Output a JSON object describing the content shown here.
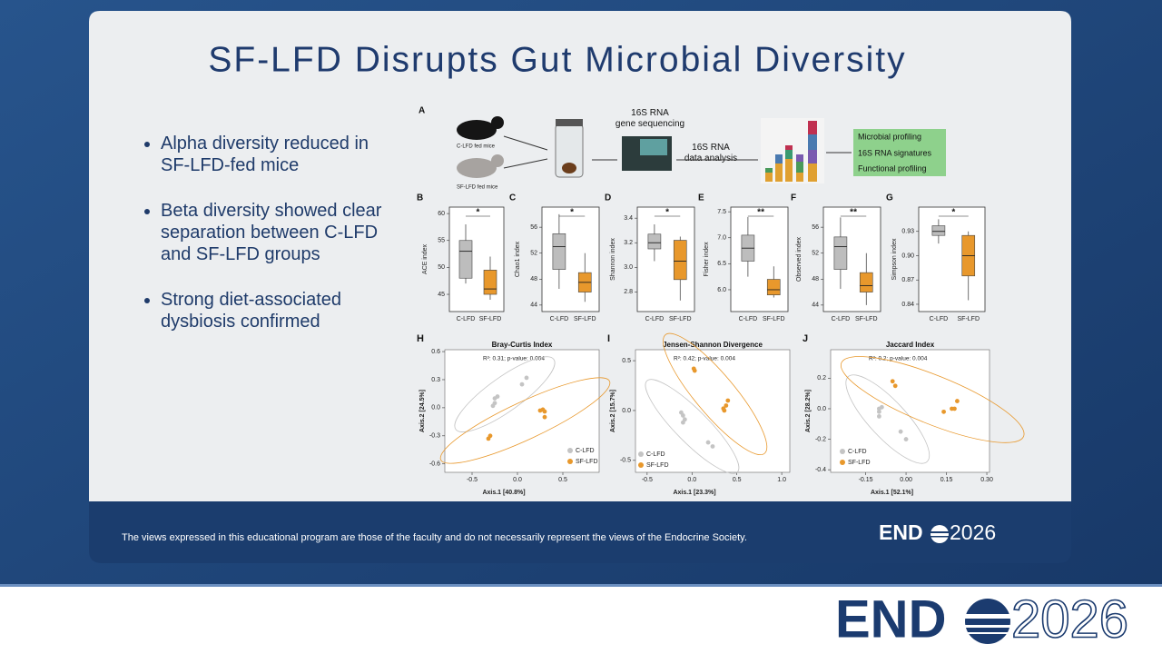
{
  "slide": {
    "title": "SF-LFD Disrupts Gut Microbial Diversity",
    "bullets": [
      "Alpha diversity reduced in SF-LFD-fed mice",
      "Beta diversity showed clear separation between C-LFD and SF-LFD groups",
      "Strong diet-associated dysbiosis confirmed"
    ],
    "disclaimer": "The views expressed in this educational program are those of the faculty and do not necessarily represent the views of the Endocrine Society.",
    "logo": {
      "left": "END",
      "right": "2026"
    }
  },
  "panel_a": {
    "label": "A",
    "mice": [
      "C-LFD fed mice",
      "SF-LFD fed mice"
    ],
    "sequencing": "16S RNA gene sequencing",
    "analysis": "16S RNA data analysis",
    "outputs": [
      "Microbial profiling",
      "16S RNA signatures",
      "Functional profiling"
    ]
  },
  "chart_data": [
    {
      "type": "box",
      "panel": "B",
      "y_label": "ACE index",
      "categories": [
        "C-LFD",
        "SF-LFD"
      ],
      "colors": [
        "#bdbdbd",
        "#e8982c"
      ],
      "boxes": [
        {
          "min": 47,
          "q1": 48,
          "median": 53,
          "q3": 55,
          "max": 58
        },
        {
          "min": 44,
          "q1": 45,
          "median": 46,
          "q3": 49.5,
          "max": 52
        }
      ],
      "significance": "*",
      "ylim": [
        41.8,
        61.2
      ],
      "yticks": [
        45,
        50,
        55,
        60
      ]
    },
    {
      "type": "box",
      "panel": "C",
      "y_label": "Chao1 index",
      "categories": [
        "C-LFD",
        "SF-LFD"
      ],
      "colors": [
        "#bdbdbd",
        "#e8982c"
      ],
      "boxes": [
        {
          "min": 46.5,
          "q1": 49.5,
          "median": 53,
          "q3": 55,
          "max": 58
        },
        {
          "min": 44.5,
          "q1": 46,
          "median": 47.5,
          "q3": 49,
          "max": 52
        }
      ],
      "significance": "*",
      "ylim": [
        43,
        59.1
      ],
      "yticks": [
        44,
        48,
        52,
        56
      ]
    },
    {
      "type": "box",
      "panel": "D",
      "y_label": "Shannon index",
      "categories": [
        "C-LFD",
        "SF-LFD"
      ],
      "colors": [
        "#bdbdbd",
        "#e8982c"
      ],
      "boxes": [
        {
          "min": 3.05,
          "q1": 3.15,
          "median": 3.2,
          "q3": 3.27,
          "max": 3.35
        },
        {
          "min": 2.73,
          "q1": 2.9,
          "median": 3.05,
          "q3": 3.22,
          "max": 3.25
        }
      ],
      "significance": "*",
      "ylim": [
        2.64,
        3.49
      ],
      "yticks": [
        {
          "value": 2.8,
          "label": "2.8"
        },
        {
          "value": 3,
          "label": "3.0"
        },
        {
          "value": 3.2,
          "label": "3.2"
        },
        {
          "value": 3.4,
          "label": "3.4"
        }
      ]
    },
    {
      "type": "box",
      "panel": "E",
      "y_label": "Fisher index",
      "categories": [
        "C-LFD",
        "SF-LFD"
      ],
      "colors": [
        "#bdbdbd",
        "#e8982c"
      ],
      "boxes": [
        {
          "min": 6.25,
          "q1": 6.55,
          "median": 6.8,
          "q3": 7.05,
          "max": 7.4
        },
        {
          "min": 5.85,
          "q1": 5.9,
          "median": 6,
          "q3": 6.2,
          "max": 6.45
        }
      ],
      "significance": "**",
      "ylim": [
        5.58,
        7.59
      ],
      "yticks": [
        {
          "value": 6,
          "label": "6.0"
        },
        6.5,
        {
          "value": 7,
          "label": "7.0"
        },
        7.5
      ]
    },
    {
      "type": "box",
      "panel": "F",
      "y_label": "Observed index",
      "categories": [
        "C-LFD",
        "SF-LFD"
      ],
      "colors": [
        "#bdbdbd",
        "#e8982c"
      ],
      "boxes": [
        {
          "min": 46.5,
          "q1": 49.5,
          "median": 53,
          "q3": 54.5,
          "max": 57.5
        },
        {
          "min": 44,
          "q1": 46,
          "median": 47,
          "q3": 49,
          "max": 52
        }
      ],
      "significance": "**",
      "ylim": [
        43,
        59.1
      ],
      "yticks": [
        44,
        48,
        52,
        56
      ]
    },
    {
      "type": "box",
      "panel": "G",
      "y_label": "Simpson index",
      "categories": [
        "C-LFD",
        "SF-LFD"
      ],
      "colors": [
        "#bdbdbd",
        "#e8982c"
      ],
      "boxes": [
        {
          "min": 0.915,
          "q1": 0.925,
          "median": 0.93,
          "q3": 0.937,
          "max": 0.945
        },
        {
          "min": 0.845,
          "q1": 0.875,
          "median": 0.9,
          "q3": 0.925,
          "max": 0.93
        }
      ],
      "significance": "*",
      "ylim": [
        0.831,
        0.96
      ],
      "yticks": [
        0.84,
        0.87,
        {
          "value": 0.9,
          "label": "0.90"
        },
        0.93
      ]
    },
    {
      "type": "scatter",
      "panel": "H",
      "title": "Bray-Curtis Index",
      "annotation": "R²: 0.31; p-value: 0.004",
      "x_label": "Axis.1  [40.8%]",
      "y_label": "Axis.2  [24.5%]",
      "xlim": [
        -0.8,
        0.9
      ],
      "ylim": [
        -0.69,
        0.62
      ],
      "xticks": [
        -0.5,
        {
          "value": 0,
          "label": "0.0"
        },
        0.5
      ],
      "yticks": [
        -0.6,
        -0.3,
        {
          "value": 0,
          "label": "0.0"
        },
        0.3,
        0.6
      ],
      "series": [
        {
          "name": "C-LFD",
          "color": "#c4c4c4",
          "x": [
            -0.27,
            -0.25,
            -0.22,
            -0.25,
            0.05,
            0.1
          ],
          "y": [
            0.02,
            0.05,
            0.12,
            0.1,
            0.25,
            0.32
          ]
        },
        {
          "name": "SF-LFD",
          "color": "#e8982c",
          "x": [
            -0.3,
            -0.32,
            0.25,
            0.3,
            0.3,
            0.28
          ],
          "y": [
            -0.3,
            -0.33,
            -0.03,
            -0.04,
            -0.1,
            -0.02
          ]
        }
      ]
    },
    {
      "type": "scatter",
      "panel": "I",
      "title": "Jensen-Shannon Divergence",
      "annotation": "R²: 0.42; p-value: 0.004",
      "x_label": "Axis.1  [23.3%]",
      "y_label": "Axis.2  [15.7%]",
      "xlim": [
        -0.63,
        1.09
      ],
      "ylim": [
        -0.62,
        0.61
      ],
      "xticks": [
        -0.5,
        {
          "value": 0,
          "label": "0.0"
        },
        0.5,
        {
          "value": 1,
          "label": "1.0"
        }
      ],
      "yticks": [
        -0.5,
        {
          "value": 0,
          "label": "0.0"
        },
        0.5
      ],
      "series": [
        {
          "name": "C-LFD",
          "color": "#c4c4c4",
          "x": [
            -0.12,
            -0.1,
            -0.1,
            -0.08,
            0.18,
            0.23
          ],
          "y": [
            -0.02,
            -0.05,
            -0.12,
            -0.09,
            -0.32,
            -0.36
          ]
        },
        {
          "name": "SF-LFD",
          "color": "#e8982c",
          "x": [
            0.02,
            0.03,
            0.35,
            0.38,
            0.4,
            0.36
          ],
          "y": [
            0.42,
            0.4,
            0.02,
            0.05,
            0.1,
            0.0
          ]
        }
      ]
    },
    {
      "type": "scatter",
      "panel": "J",
      "title": "Jaccard Index",
      "annotation": "R²: 0.2; p-value: 0.004",
      "x_label": "Axis.1  [52.1%]",
      "y_label": "Axis.2  [28.2%]",
      "xlim": [
        -0.28,
        0.31
      ],
      "ylim": [
        -0.417,
        0.387
      ],
      "xticks": [
        -0.15,
        {
          "value": 0,
          "label": "0.00"
        },
        0.15,
        {
          "value": 0.3,
          "label": "0.30"
        }
      ],
      "yticks": [
        -0.4,
        -0.2,
        {
          "value": 0,
          "label": "0.0"
        },
        0.2
      ],
      "series": [
        {
          "name": "C-LFD",
          "color": "#c4c4c4",
          "x": [
            -0.1,
            -0.1,
            -0.09,
            -0.1,
            -0.02,
            0.0
          ],
          "y": [
            0.0,
            -0.02,
            0.01,
            -0.05,
            -0.15,
            -0.2
          ]
        },
        {
          "name": "SF-LFD",
          "color": "#e8982c",
          "x": [
            -0.05,
            -0.04,
            0.14,
            0.18,
            0.19,
            0.17
          ],
          "y": [
            0.18,
            0.15,
            -0.02,
            0.0,
            0.05,
            0.0
          ]
        }
      ]
    }
  ]
}
